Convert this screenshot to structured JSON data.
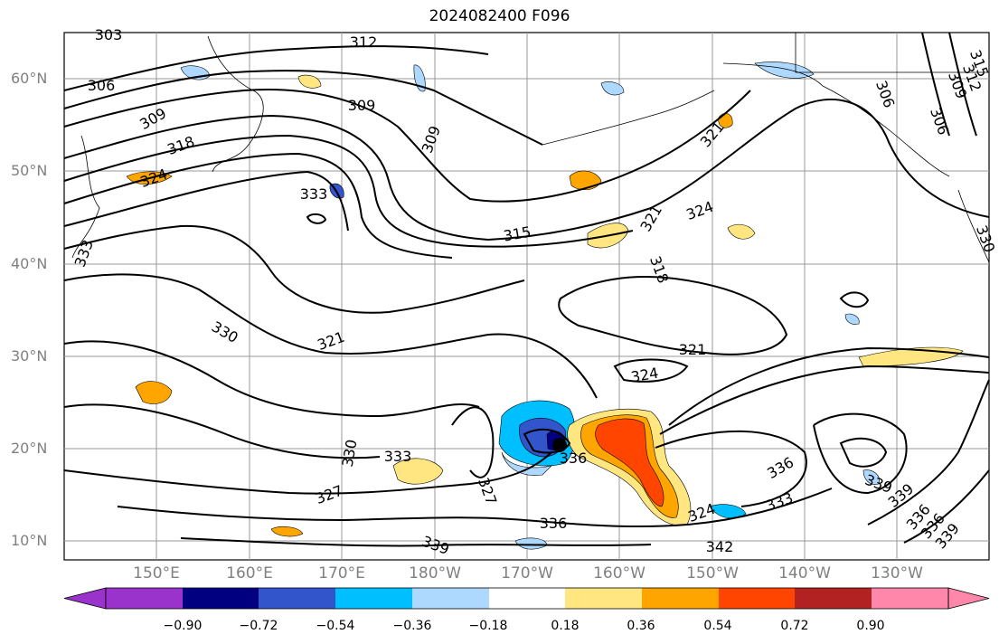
{
  "title": "2024082400 F096",
  "map": {
    "lat_labels": [
      "60°N",
      "50°N",
      "40°N",
      "30°N",
      "20°N",
      "10°N"
    ],
    "lon_labels": [
      "150°E",
      "160°E",
      "170°E",
      "180°W",
      "170°W",
      "160°W",
      "150°W",
      "140°W",
      "130°W"
    ],
    "contour_labels": [
      "303",
      "306",
      "309",
      "312",
      "309",
      "309",
      "318",
      "324",
      "333",
      "315",
      "321",
      "324",
      "318",
      "321",
      "306",
      "306",
      "309",
      "312",
      "315",
      "330",
      "321",
      "324",
      "321",
      "330",
      "333",
      "336",
      "327",
      "327",
      "324",
      "333",
      "339",
      "336",
      "336",
      "339",
      "339",
      "336",
      "336",
      "339",
      "342",
      "333",
      "330"
    ],
    "colors": {
      "negative": [
        "#9933cc",
        "#000080",
        "#3355cc",
        "#00bfff",
        "#add8ff"
      ],
      "neutral": "#ffffff",
      "positive": [
        "#ffe680",
        "#ffa500",
        "#ff4500",
        "#b22222",
        "#ff88aa"
      ]
    }
  },
  "colorbar": {
    "ticks": [
      "−0.90",
      "−0.72",
      "−0.54",
      "−0.36",
      "−0.18",
      "0.18",
      "0.36",
      "0.54",
      "0.72",
      "0.90"
    ],
    "colors": [
      "#9933cc",
      "#000080",
      "#3355cc",
      "#00bfff",
      "#add8ff",
      "#ffffff",
      "#ffe680",
      "#ffa500",
      "#ff4500",
      "#b22222",
      "#ff88aa"
    ]
  }
}
